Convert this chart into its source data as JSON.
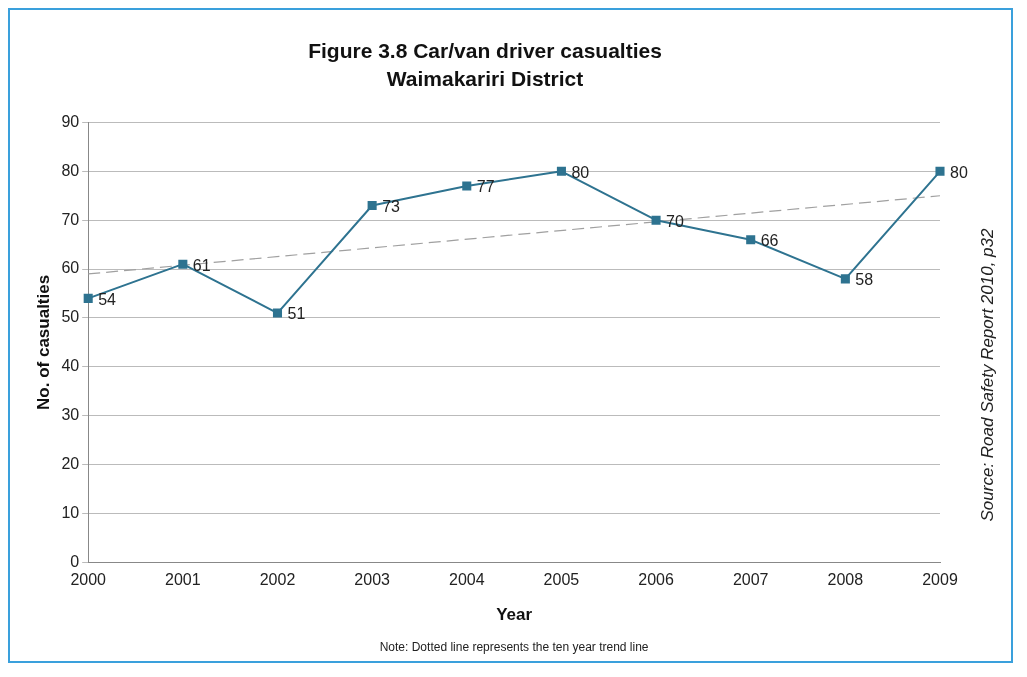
{
  "chart_data": {
    "type": "line",
    "title": "Figure 3.8 Car/van driver casualties",
    "subtitle": "Waimakariri District",
    "xlabel": "Year",
    "ylabel": "No. of casualties",
    "categories": [
      "2000",
      "2001",
      "2002",
      "2003",
      "2004",
      "2005",
      "2006",
      "2007",
      "2008",
      "2009"
    ],
    "series": [
      {
        "color": "#2e7390",
        "values": [
          54,
          61,
          51,
          73,
          77,
          80,
          70,
          66,
          58,
          80
        ],
        "marker": "square",
        "value_labels": [
          "54",
          "61",
          "51",
          "73",
          "77",
          "80",
          "70",
          "66",
          "58",
          "80"
        ]
      },
      {
        "type": "line",
        "values": [
          59,
          null,
          null,
          null,
          null,
          null,
          null,
          null,
          null,
          75
        ],
        "color": "#a0a0a0",
        "line_style": "dashed",
        "marker": "none"
      }
    ],
    "ylim": [
      0,
      90
    ],
    "yticks": [
      0,
      10,
      20,
      30,
      40,
      50,
      60,
      70,
      80,
      90
    ],
    "grid": "y",
    "legend": false,
    "annotations": [
      "Note: Dotted line represents the ten year trend line",
      "Source: Road Safety Report 2010, p32"
    ]
  }
}
